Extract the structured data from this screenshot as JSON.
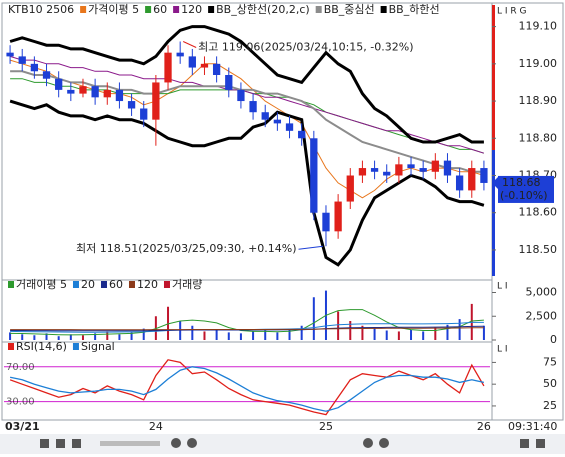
{
  "chart_data": [
    {
      "type": "candlestick",
      "title": "KTB10 2506",
      "categories": [
        "03/21",
        null,
        null,
        null,
        null,
        null,
        null,
        null,
        null,
        null,
        null,
        null,
        "24",
        null,
        null,
        null,
        null,
        null,
        null,
        null,
        null,
        null,
        null,
        null,
        null,
        null,
        "25",
        null,
        null,
        null,
        null,
        null,
        null,
        null,
        null,
        null,
        null,
        null,
        null,
        "26"
      ],
      "open": [
        119.03,
        119.02,
        119.0,
        118.98,
        118.96,
        118.93,
        118.92,
        118.94,
        118.91,
        118.93,
        118.9,
        118.88,
        118.85,
        118.95,
        119.03,
        119.02,
        118.99,
        119.0,
        118.97,
        118.93,
        118.9,
        118.87,
        118.85,
        118.84,
        118.82,
        118.8,
        118.6,
        118.55,
        118.63,
        118.7,
        118.72,
        118.71,
        118.7,
        118.73,
        118.72,
        118.71,
        118.74,
        118.7,
        118.66,
        118.72
      ],
      "high": [
        119.05,
        119.04,
        119.02,
        119.0,
        118.98,
        118.95,
        118.96,
        118.96,
        118.95,
        118.95,
        118.92,
        118.9,
        118.97,
        119.05,
        119.06,
        119.04,
        119.02,
        119.02,
        118.99,
        118.95,
        118.92,
        118.89,
        118.87,
        118.86,
        118.84,
        118.82,
        118.62,
        118.65,
        118.72,
        118.74,
        118.74,
        118.73,
        118.75,
        118.75,
        118.74,
        118.76,
        118.76,
        118.72,
        118.74,
        118.74
      ],
      "low": [
        119.0,
        118.98,
        118.96,
        118.94,
        118.91,
        118.9,
        118.91,
        118.89,
        118.89,
        118.88,
        118.86,
        118.83,
        118.78,
        118.93,
        119.0,
        118.97,
        118.97,
        118.95,
        118.91,
        118.88,
        118.85,
        118.83,
        118.82,
        118.8,
        118.78,
        118.58,
        118.51,
        118.53,
        118.61,
        118.68,
        118.69,
        118.68,
        118.68,
        118.7,
        118.69,
        118.69,
        118.68,
        118.64,
        118.64,
        118.66
      ],
      "close": [
        119.02,
        119.0,
        118.98,
        118.96,
        118.93,
        118.92,
        118.94,
        118.91,
        118.93,
        118.9,
        118.88,
        118.85,
        118.95,
        119.03,
        119.02,
        118.99,
        119.0,
        118.97,
        118.93,
        118.9,
        118.87,
        118.85,
        118.84,
        118.82,
        118.8,
        118.6,
        118.55,
        118.63,
        118.7,
        118.72,
        118.71,
        118.7,
        118.73,
        118.72,
        118.71,
        118.74,
        118.7,
        118.66,
        118.72,
        118.68
      ],
      "up_color": "#e0201a",
      "down_color": "#1d3fd6",
      "series": [
        {
          "name": "가격이평 5",
          "color": "#e8761c",
          "width": 1,
          "values": [
            119.01,
            119.0,
            118.99,
            118.98,
            118.96,
            118.95,
            118.94,
            118.93,
            118.92,
            118.92,
            118.91,
            118.89,
            118.9,
            118.92,
            118.94,
            118.97,
            119.0,
            119.0,
            118.98,
            118.96,
            118.93,
            118.9,
            118.88,
            118.86,
            118.84,
            118.78,
            118.72,
            118.68,
            118.66,
            118.64,
            118.66,
            118.69,
            118.71,
            118.72,
            118.71,
            118.72,
            118.72,
            118.71,
            118.71,
            118.7
          ]
        },
        {
          "name": "60",
          "color": "#2e9a2e",
          "width": 1,
          "values": [
            118.96,
            118.96,
            118.95,
            118.95,
            118.94,
            118.94,
            118.93,
            118.93,
            118.93,
            118.92,
            118.92,
            118.92,
            118.92,
            118.92,
            118.93,
            118.93,
            118.93,
            118.93,
            118.93,
            118.93,
            118.92,
            118.92,
            118.91,
            118.91,
            118.9,
            118.89,
            118.87,
            118.86,
            118.85,
            118.84,
            118.83,
            118.82,
            118.81,
            118.8,
            118.79,
            118.79,
            118.78,
            118.77,
            118.77,
            118.76
          ]
        },
        {
          "name": "120",
          "color": "#8b1a8b",
          "width": 1,
          "values": [
            119.02,
            119.01,
            119.01,
            119.0,
            119.0,
            118.99,
            118.99,
            118.98,
            118.98,
            118.97,
            118.97,
            118.96,
            118.96,
            118.96,
            118.95,
            118.95,
            118.94,
            118.94,
            118.93,
            118.93,
            118.92,
            118.91,
            118.91,
            118.9,
            118.89,
            118.88,
            118.87,
            118.86,
            118.85,
            118.84,
            118.83,
            118.82,
            118.82,
            118.81,
            118.8,
            118.79,
            118.78,
            118.78,
            118.77,
            118.76
          ]
        },
        {
          "name": "BB_상한선(20,2,c)",
          "color": "#000000",
          "width": 3,
          "values": [
            119.06,
            119.07,
            119.06,
            119.05,
            119.05,
            119.04,
            119.04,
            119.03,
            119.02,
            119.01,
            119.01,
            119.0,
            119.02,
            119.06,
            119.09,
            119.1,
            119.1,
            119.09,
            119.08,
            119.06,
            119.03,
            119.0,
            118.97,
            118.96,
            118.95,
            118.99,
            119.03,
            119.0,
            118.98,
            118.92,
            118.88,
            118.86,
            118.83,
            118.8,
            118.79,
            118.79,
            118.8,
            118.81,
            118.79,
            118.79
          ]
        },
        {
          "name": "BB_중심선",
          "color": "#8c8c8c",
          "width": 2,
          "values": [
            118.98,
            118.98,
            118.97,
            118.97,
            118.96,
            118.95,
            118.95,
            118.94,
            118.94,
            118.93,
            118.93,
            118.92,
            118.92,
            118.93,
            118.94,
            118.94,
            118.94,
            118.94,
            118.94,
            118.93,
            118.93,
            118.92,
            118.92,
            118.91,
            118.9,
            118.88,
            118.85,
            118.83,
            118.81,
            118.79,
            118.78,
            118.77,
            118.76,
            118.75,
            118.74,
            118.73,
            118.72,
            118.72,
            118.71,
            118.71
          ]
        },
        {
          "name": "BB_하한선",
          "color": "#000000",
          "width": 3,
          "values": [
            118.9,
            118.89,
            118.88,
            118.89,
            118.87,
            118.86,
            118.86,
            118.85,
            118.86,
            118.85,
            118.85,
            118.84,
            118.82,
            118.8,
            118.79,
            118.78,
            118.78,
            118.79,
            118.8,
            118.8,
            118.83,
            118.84,
            118.87,
            118.86,
            118.85,
            118.6,
            118.48,
            118.46,
            118.5,
            118.58,
            118.64,
            118.66,
            118.68,
            118.7,
            118.69,
            118.67,
            118.64,
            118.63,
            118.63,
            118.62
          ]
        }
      ],
      "annotations": [
        {
          "text": "최고 119.06(2025/03/24,10:15, -0.32%)",
          "index": 14,
          "price": 119.06,
          "color": "#e0201a"
        },
        {
          "text": "최저 118.51(2025/03/25,09:30, +0.14%)",
          "index": 26,
          "price": 118.51,
          "color": "#1d3fd6"
        }
      ],
      "current": {
        "price": 118.68,
        "change": "(-0.10%)"
      },
      "ylim": [
        118.43,
        119.15
      ],
      "yticks": [
        {
          "value": 118.5,
          "label": "118.50"
        },
        {
          "value": 118.6,
          "label": "118.60"
        },
        {
          "value": 118.7,
          "label": "118.70"
        },
        {
          "value": 118.8,
          "label": "118.80"
        },
        {
          "value": 118.9,
          "label": "118.90"
        },
        {
          "value": 119.0,
          "label": "119.00"
        },
        {
          "value": 119.1,
          "label": "119.10"
        }
      ]
    },
    {
      "type": "bar",
      "series": [
        {
          "name": "거래이평 5",
          "kind": "line",
          "color": "#2e9a2e",
          "values": [
            700,
            680,
            640,
            600,
            560,
            540,
            560,
            580,
            620,
            660,
            700,
            820,
            1200,
            1700,
            2000,
            2100,
            2000,
            1800,
            1300,
            1000,
            900,
            900,
            860,
            920,
            1100,
            1800,
            2600,
            3100,
            3200,
            3200,
            2600,
            1900,
            1300,
            1100,
            1000,
            1000,
            1200,
            1400,
            2000,
            2100
          ]
        },
        {
          "name": "20",
          "kind": "line",
          "color": "#1d7fd6",
          "values": [
            900,
            880,
            860,
            850,
            840,
            830,
            820,
            820,
            830,
            840,
            850,
            870,
            930,
            1000,
            1050,
            1080,
            1090,
            1100,
            1100,
            1100,
            1110,
            1130,
            1140,
            1160,
            1200,
            1300,
            1480,
            1600,
            1660,
            1700,
            1720,
            1720,
            1710,
            1700,
            1700,
            1710,
            1730,
            1760,
            1850,
            1850
          ]
        },
        {
          "name": "60",
          "kind": "line",
          "color": "#1a2a8c",
          "values": [
            1000,
            1000,
            990,
            990,
            980,
            980,
            970,
            970,
            970,
            970,
            970,
            980,
            1000,
            1020,
            1040,
            1050,
            1050,
            1050,
            1050,
            1050,
            1050,
            1060,
            1060,
            1070,
            1080,
            1130,
            1200,
            1250,
            1280,
            1300,
            1320,
            1330,
            1340,
            1350,
            1350,
            1360,
            1370,
            1390,
            1430,
            1440
          ]
        },
        {
          "name": "120",
          "kind": "line",
          "color": "#8b3a1a",
          "values": [
            1100,
            1100,
            1100,
            1090,
            1090,
            1090,
            1080,
            1080,
            1080,
            1080,
            1080,
            1080,
            1090,
            1100,
            1100,
            1110,
            1110,
            1110,
            1110,
            1110,
            1110,
            1110,
            1120,
            1120,
            1120,
            1140,
            1170,
            1190,
            1200,
            1210,
            1220,
            1230,
            1230,
            1240,
            1240,
            1250,
            1250,
            1260,
            1280,
            1290
          ]
        },
        {
          "name": "거래량",
          "kind": "bar",
          "color": "#c0142c",
          "values": [
            800,
            600,
            500,
            700,
            400,
            600,
            500,
            700,
            900,
            600,
            800,
            1200,
            2500,
            3500,
            2000,
            1500,
            900,
            1100,
            800,
            700,
            900,
            1000,
            800,
            1200,
            1500,
            4500,
            5200,
            3000,
            2000,
            1500,
            1200,
            1000,
            900,
            1100,
            900,
            1300,
            1600,
            2200,
            3800,
            1500
          ]
        }
      ],
      "ylim": [
        0,
        6000
      ],
      "yticks": [
        0,
        {
          "value": 2500,
          "label": "2,500"
        },
        {
          "value": 5000,
          "label": "5,000"
        }
      ]
    },
    {
      "type": "line",
      "series": [
        {
          "name": "RSI(14,6)",
          "color": "#e0201a",
          "values": [
            55,
            50,
            45,
            40,
            35,
            38,
            45,
            40,
            48,
            42,
            38,
            32,
            60,
            78,
            75,
            62,
            64,
            55,
            45,
            38,
            32,
            30,
            28,
            26,
            22,
            18,
            15,
            35,
            55,
            62,
            60,
            58,
            65,
            60,
            55,
            62,
            50,
            40,
            72,
            48
          ]
        },
        {
          "name": "Signal",
          "color": "#1d7fd6",
          "values": [
            58,
            55,
            50,
            46,
            42,
            40,
            41,
            42,
            44,
            44,
            42,
            38,
            44,
            56,
            66,
            70,
            68,
            63,
            56,
            48,
            40,
            35,
            31,
            29,
            26,
            22,
            19,
            23,
            32,
            42,
            52,
            58,
            60,
            60,
            58,
            58,
            56,
            52,
            55,
            52
          ]
        }
      ],
      "hlines": [
        {
          "value": 70,
          "label": "70.00",
          "color": "#d020d0"
        },
        {
          "value": 30,
          "label": "30.00",
          "color": "#d020d0"
        }
      ],
      "ylim": [
        10,
        95
      ],
      "yticks": [
        25,
        50,
        75
      ]
    }
  ],
  "ui": {
    "axis_buttons": [
      "L I R G",
      "L I",
      "L I"
    ],
    "time": "09:31:40"
  }
}
